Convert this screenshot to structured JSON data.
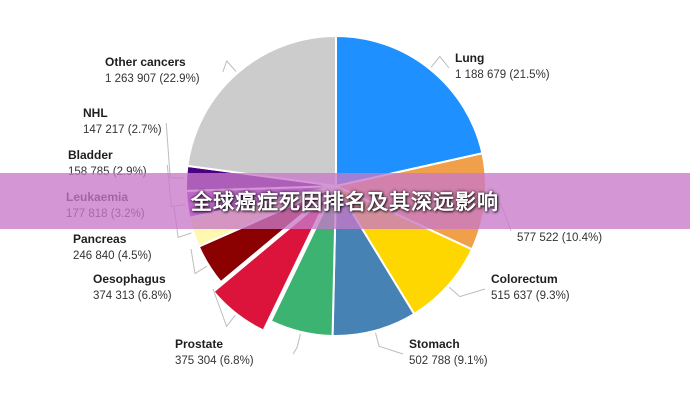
{
  "banner": {
    "title": "全球癌症死因排名及其深远影响"
  },
  "chart_data": {
    "type": "pie",
    "title": "",
    "slices": [
      {
        "label": "Lung",
        "value": 1188679,
        "value_text": "1 188 679 (21.5%)",
        "percent": 21.5,
        "color": "#1e90ff",
        "exploded": false
      },
      {
        "label": "",
        "value": 577522,
        "value_text": "577 522 (10.4%)",
        "percent": 10.4,
        "color": "#f0a04b",
        "exploded": false
      },
      {
        "label": "Colorectum",
        "value": 515637,
        "value_text": "515 637 (9.3%)",
        "percent": 9.3,
        "color": "#ffd700",
        "exploded": false
      },
      {
        "label": "Stomach",
        "value": 502788,
        "value_text": "502 788 (9.1%)",
        "percent": 9.1,
        "color": "#4682b4",
        "exploded": false
      },
      {
        "label": "Prostate",
        "value": 375304,
        "value_text": "375 304 (6.8%)",
        "percent": 6.8,
        "color": "#3cb371",
        "exploded": false
      },
      {
        "label": "Oesophagus",
        "value": 374313,
        "value_text": "374 313 (6.8%)",
        "percent": 6.8,
        "color": "#dc143c",
        "exploded": true
      },
      {
        "label": "Pancreas",
        "value": 246840,
        "value_text": "246 840 (4.5%)",
        "percent": 4.5,
        "color": "#8b0000",
        "exploded": false
      },
      {
        "label": "Leukaemia",
        "value": 177818,
        "value_text": "177 818 (3.2%)",
        "percent": 3.2,
        "color": "#fff8b0",
        "exploded": false
      },
      {
        "label": "Bladder",
        "value": 158785,
        "value_text": "158 785 (2.9%)",
        "percent": 2.9,
        "color": "#9932cc",
        "exploded": false
      },
      {
        "label": "NHL",
        "value": 147217,
        "value_text": "147 217 (2.7%)",
        "percent": 2.7,
        "color": "#4b0082",
        "exploded": false
      },
      {
        "label": "Other cancers",
        "value": 1263907,
        "value_text": "1 263 907 (22.9%)",
        "percent": 22.9,
        "color": "#cccccc",
        "exploded": false
      }
    ]
  }
}
